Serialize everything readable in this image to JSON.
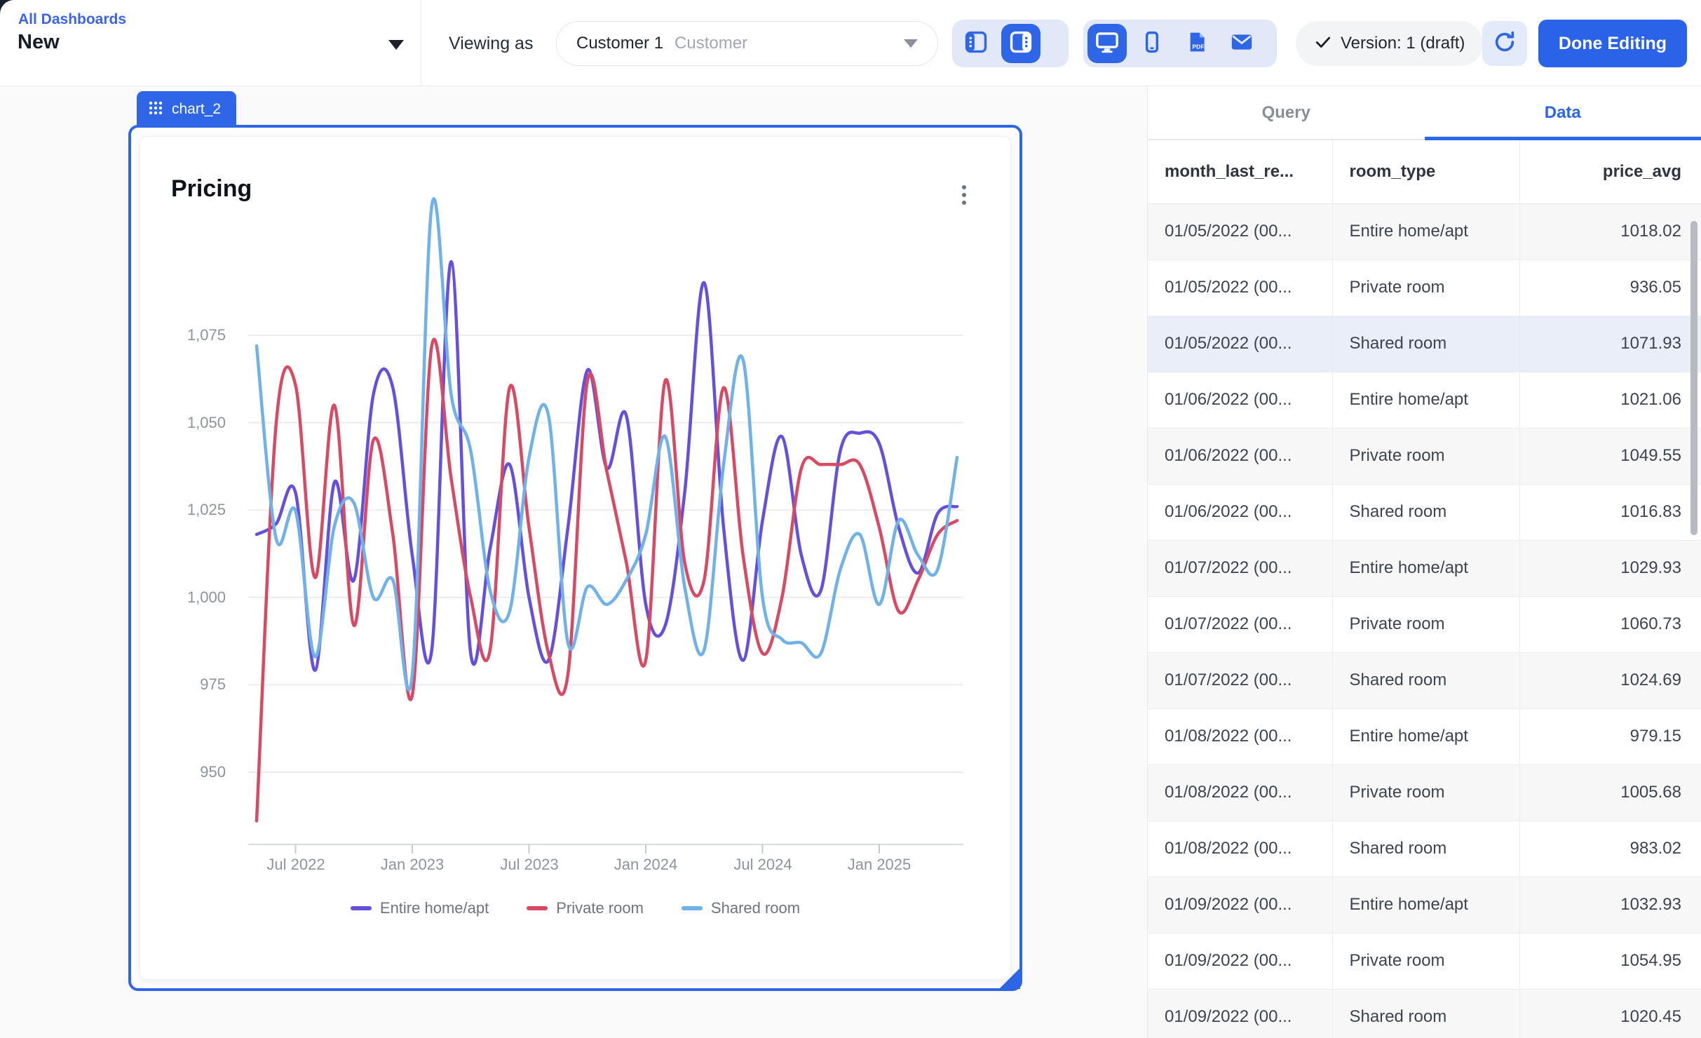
{
  "colors": {
    "accent": "#2e66e7",
    "entire_home": "#6550dd",
    "private_room": "#d84a63",
    "shared_room": "#6fb1e8"
  },
  "topbar": {
    "breadcrumb": "All Dashboards",
    "title": "New",
    "viewing_as_label": "Viewing as",
    "customer_value": "Customer 1",
    "customer_placeholder": "Customer",
    "version_badge": "Version: 1 (draft)",
    "done_button": "Done Editing"
  },
  "chart_card": {
    "tab_label": "chart_2",
    "title": "Pricing"
  },
  "panel": {
    "tabs": {
      "query": "Query",
      "data": "Data"
    },
    "table": {
      "columns": [
        "month_last_re...",
        "room_type",
        "price_avg"
      ],
      "highlighted_row_index": 2,
      "rows": [
        [
          "01/05/2022 (00...",
          "Entire home/apt",
          "1018.02"
        ],
        [
          "01/05/2022 (00...",
          "Private room",
          "936.05"
        ],
        [
          "01/05/2022 (00...",
          "Shared room",
          "1071.93"
        ],
        [
          "01/06/2022 (00...",
          "Entire home/apt",
          "1021.06"
        ],
        [
          "01/06/2022 (00...",
          "Private room",
          "1049.55"
        ],
        [
          "01/06/2022 (00...",
          "Shared room",
          "1016.83"
        ],
        [
          "01/07/2022 (00...",
          "Entire home/apt",
          "1029.93"
        ],
        [
          "01/07/2022 (00...",
          "Private room",
          "1060.73"
        ],
        [
          "01/07/2022 (00...",
          "Shared room",
          "1024.69"
        ],
        [
          "01/08/2022 (00...",
          "Entire home/apt",
          "979.15"
        ],
        [
          "01/08/2022 (00...",
          "Private room",
          "1005.68"
        ],
        [
          "01/08/2022 (00...",
          "Shared room",
          "983.02"
        ],
        [
          "01/09/2022 (00...",
          "Entire home/apt",
          "1032.93"
        ],
        [
          "01/09/2022 (00...",
          "Private room",
          "1054.95"
        ],
        [
          "01/09/2022 (00...",
          "Shared room",
          "1020.45"
        ]
      ]
    }
  },
  "chart_data": {
    "type": "line",
    "title": "Pricing",
    "xlabel": "",
    "ylabel": "",
    "grid": true,
    "legend_position": "bottom",
    "ylim": [
      928,
      1120
    ],
    "yticks": [
      {
        "label": "1,075",
        "value": 1075
      },
      {
        "label": "1,050",
        "value": 1050
      },
      {
        "label": "1,025",
        "value": 1025
      },
      {
        "label": "1,000",
        "value": 1000
      },
      {
        "label": "975",
        "value": 975
      },
      {
        "label": "950",
        "value": 950
      }
    ],
    "xticks": [
      {
        "label": "Jul 2022",
        "index": 2
      },
      {
        "label": "Jan 2023",
        "index": 8
      },
      {
        "label": "Jul 2023",
        "index": 14
      },
      {
        "label": "Jan 2024",
        "index": 20
      },
      {
        "label": "Jul 2024",
        "index": 26
      },
      {
        "label": "Jan 2025",
        "index": 32
      }
    ],
    "x": [
      "2022-05",
      "2022-06",
      "2022-07",
      "2022-08",
      "2022-09",
      "2022-10",
      "2022-11",
      "2022-12",
      "2023-01",
      "2023-02",
      "2023-03",
      "2023-04",
      "2023-05",
      "2023-06",
      "2023-07",
      "2023-08",
      "2023-09",
      "2023-10",
      "2023-11",
      "2023-12",
      "2024-01",
      "2024-02",
      "2024-03",
      "2024-04",
      "2024-05",
      "2024-06",
      "2024-07",
      "2024-08",
      "2024-09",
      "2024-10",
      "2024-11",
      "2024-12",
      "2025-01",
      "2025-02",
      "2025-03",
      "2025-04",
      "2025-05"
    ],
    "series": [
      {
        "name": "Entire home/apt",
        "color": "#6550dd",
        "values": [
          1018.02,
          1021.06,
          1029.93,
          979.15,
          1032.93,
          1005,
          1058,
          1060,
          1012,
          985,
          1096,
          984,
          1014,
          1038,
          1000,
          982,
          1020,
          1065,
          1037,
          1052,
          998,
          992,
          1030,
          1090,
          1020,
          982,
          1022,
          1046,
          1012,
          1002,
          1042,
          1047,
          1044,
          1020,
          1007,
          1024,
          1026
        ]
      },
      {
        "name": "Private room",
        "color": "#d84a63",
        "values": [
          936.05,
          1049.55,
          1060.73,
          1005.68,
          1054.95,
          992,
          1045,
          1018,
          972,
          1072,
          1034,
          1000,
          985,
          1060,
          1020,
          984,
          978,
          1062,
          1036,
          1010,
          982,
          1062,
          1010,
          1005,
          1060,
          1012,
          984,
          1000,
          1037,
          1038,
          1038,
          1038,
          1020,
          996,
          1005,
          1018,
          1022
        ]
      },
      {
        "name": "Shared room",
        "color": "#6fb1e8",
        "values": [
          1071.93,
          1016.83,
          1024.69,
          983.02,
          1020.45,
          1027,
          1000,
          1005,
          978,
          1112,
          1058,
          1042,
          1002,
          996,
          1040,
          1052,
          987,
          1003,
          998,
          1005,
          1018,
          1046,
          1003,
          985,
          1038,
          1068,
          1000,
          988,
          987,
          984,
          1008,
          1018,
          998,
          1022,
          1012,
          1008,
          1040
        ]
      }
    ]
  }
}
